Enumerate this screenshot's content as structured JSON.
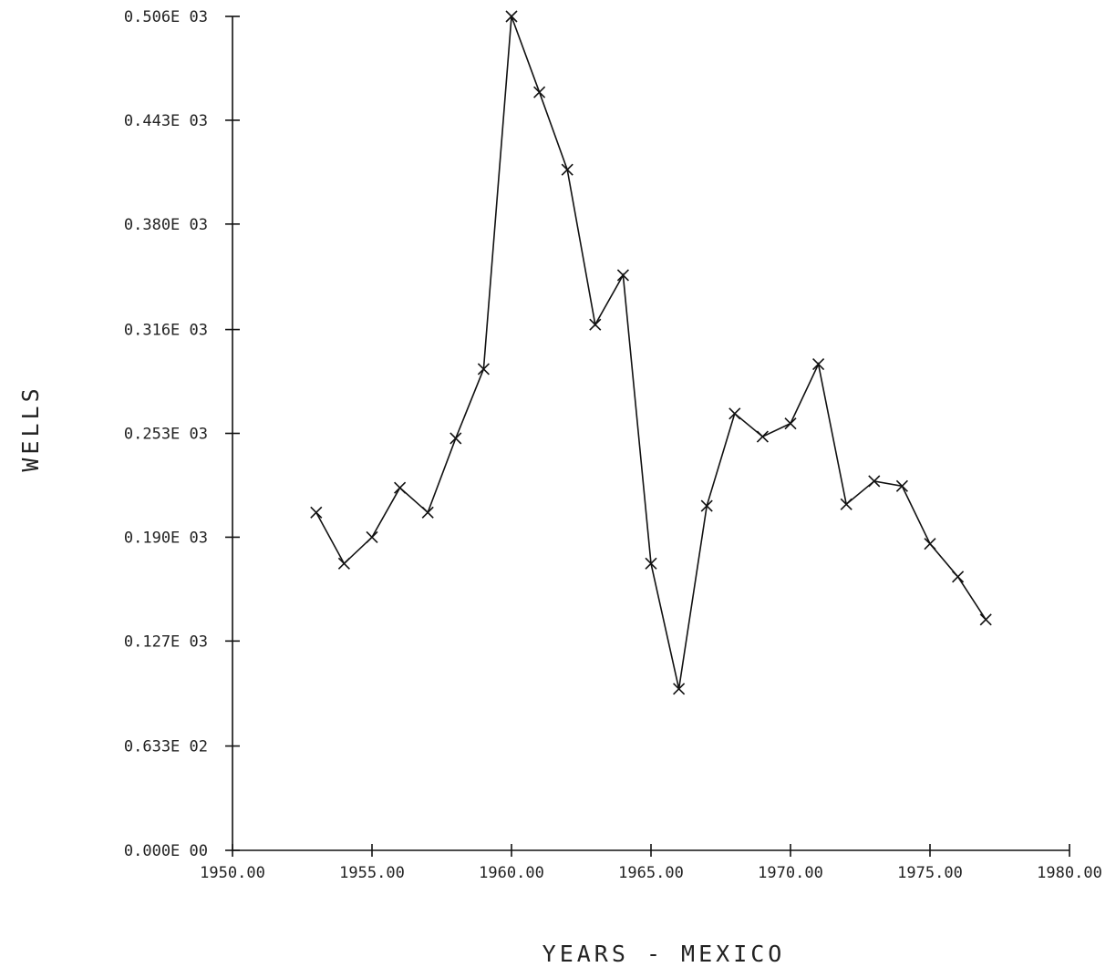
{
  "chart_data": {
    "type": "line",
    "xlabel": "YEARS - MEXICO",
    "ylabel": "WELLS",
    "xlim": [
      1950,
      1980
    ],
    "ylim": [
      0,
      506
    ],
    "x_ticks": [
      1950,
      1955,
      1960,
      1965,
      1970,
      1975,
      1980
    ],
    "x_tick_labels": [
      "1950.00",
      "1955.00",
      "1960.00",
      "1965.00",
      "1970.00",
      "1975.00",
      "1980.00"
    ],
    "y_ticks": [
      0,
      63.3,
      127,
      190,
      253,
      316,
      380,
      443,
      506
    ],
    "y_tick_labels": [
      "0.000E 00",
      "0.633E 02",
      "0.127E 03",
      "0.190E 03",
      "0.253E 03",
      "0.316E 03",
      "0.380E 03",
      "0.443E 03",
      "0.506E 03"
    ],
    "grid": false,
    "marker": "x",
    "series": [
      {
        "x": [
          1953,
          1954,
          1955,
          1956,
          1957,
          1958,
          1959,
          1960,
          1961,
          1962,
          1963,
          1964,
          1965,
          1966,
          1967,
          1968,
          1969,
          1970,
          1971,
          1972,
          1973,
          1974,
          1975,
          1976,
          1977
        ],
        "y": [
          205,
          174,
          190,
          220,
          205,
          250,
          292,
          506,
          460,
          413,
          319,
          349,
          174,
          98,
          209,
          265,
          251,
          259,
          295,
          210,
          224,
          221,
          186,
          166,
          140
        ]
      }
    ]
  }
}
